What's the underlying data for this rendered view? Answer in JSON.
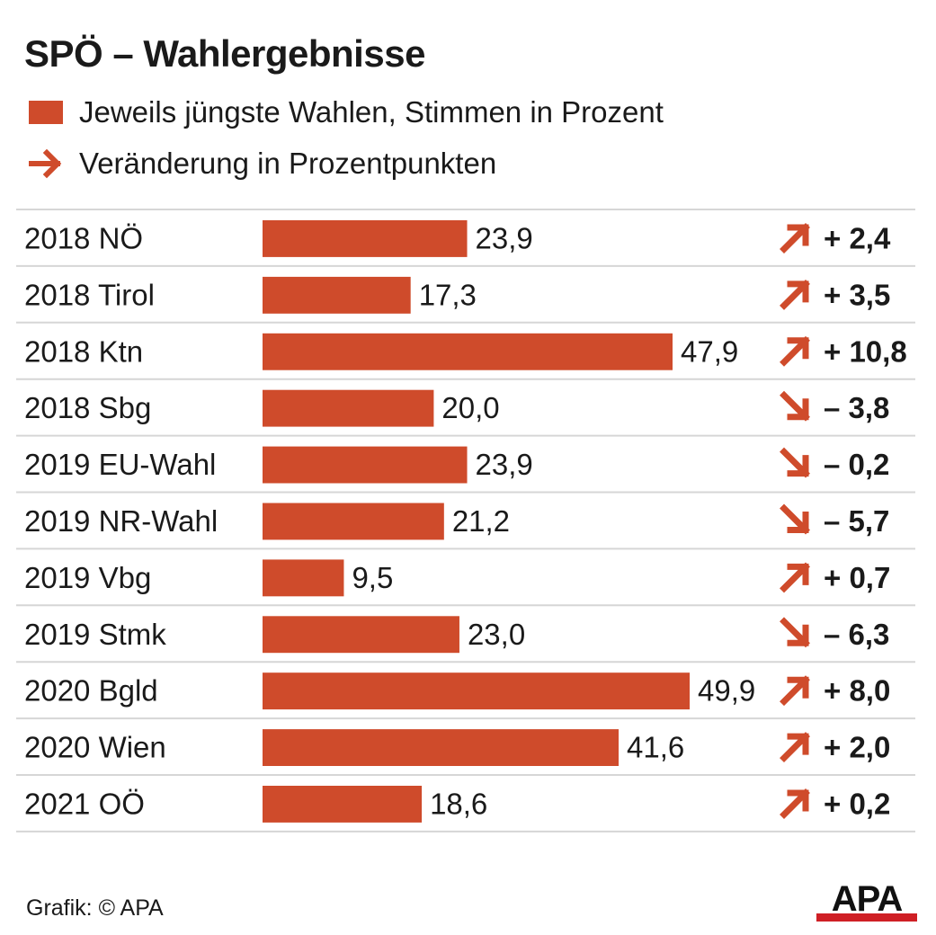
{
  "title": "SPÖ – Wahlergebnisse",
  "legend": {
    "bar_label": "Jeweils jüngste Wahlen, Stimmen in Prozent",
    "arrow_label": "Veränderung in Prozentpunkten"
  },
  "colors": {
    "bar": "#cf4b2b",
    "text": "#1a1a1a",
    "rule": "#d6d6d6"
  },
  "chart_data": {
    "type": "bar",
    "orientation": "horizontal",
    "categories": [
      "2018 NÖ",
      "2018 Tirol",
      "2018 Ktn",
      "2018 Sbg",
      "2019 EU-Wahl",
      "2019 NR-Wahl",
      "2019 Vbg",
      "2019 Stmk",
      "2020 Bgld",
      "2020 Wien",
      "2021 OÖ"
    ],
    "values": [
      23.9,
      17.3,
      47.9,
      20.0,
      23.9,
      21.2,
      9.5,
      23.0,
      49.9,
      41.6,
      18.6
    ],
    "value_labels": [
      "23,9",
      "17,3",
      "47,9",
      "20,0",
      "23,9",
      "21,2",
      "9,5",
      "23,0",
      "49,9",
      "41,6",
      "18,6"
    ],
    "changes": [
      2.4,
      3.5,
      10.8,
      -3.8,
      -0.2,
      -5.7,
      0.7,
      -6.3,
      8.0,
      2.0,
      0.2
    ],
    "change_labels": [
      "+ 2,4",
      "+ 3,5",
      "+ 10,8",
      "– 3,8",
      "– 0,2",
      "– 5,7",
      "+ 0,7",
      "– 6,3",
      "+ 8,0",
      "+ 2,0",
      "+ 0,2"
    ],
    "xlim": [
      0,
      50
    ],
    "grid": false
  },
  "footer": {
    "credit": "Grafik: © APA",
    "logo_text": "APA"
  }
}
